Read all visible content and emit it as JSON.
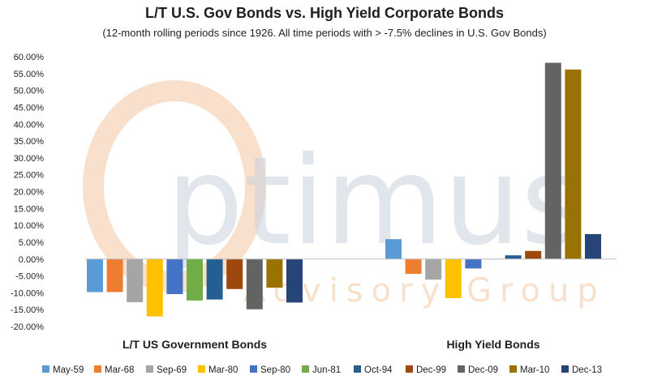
{
  "title": "L/T U.S. Gov Bonds vs. High Yield Corporate Bonds",
  "subtitle": "(12-month rolling periods since 1926.  All time periods with > -7.5% declines in U.S. Gov Bonds)",
  "watermark": {
    "brand": "Optimus",
    "tagline": "Advisory Group"
  },
  "colors": {
    "May-59": "#5b9bd5",
    "Mar-68": "#ed7d31",
    "Sep-69": "#a5a5a5",
    "Mar-80": "#ffc000",
    "Sep-80": "#4472c4",
    "Jun-81": "#70ad47",
    "Oct-94": "#255e91",
    "Dec-99": "#9e480e",
    "Dec-09": "#636363",
    "Mar-10": "#997300",
    "Dec-13": "#264478"
  },
  "chart_data": {
    "type": "bar",
    "title": "L/T U.S. Gov Bonds vs. High Yield Corporate Bonds",
    "subtitle": "(12-month rolling periods since 1926.  All time periods with > -7.5% declines in U.S. Gov Bonds)",
    "categories": [
      "L/T US Government Bonds",
      "High Yield Bonds"
    ],
    "ylim": [
      -20,
      60
    ],
    "ytick_step": 5,
    "y_tick_format": "percent_2dp",
    "grid": false,
    "legend": "bottom",
    "series": [
      {
        "name": "May-59",
        "values": [
          -9.8,
          5.9
        ]
      },
      {
        "name": "Mar-68",
        "values": [
          -9.8,
          -4.4
        ]
      },
      {
        "name": "Sep-69",
        "values": [
          -12.8,
          -6.1
        ]
      },
      {
        "name": "Mar-80",
        "values": [
          -17.0,
          -11.6
        ]
      },
      {
        "name": "Sep-80",
        "values": [
          -10.4,
          -2.8
        ]
      },
      {
        "name": "Jun-81",
        "values": [
          -12.3,
          0.0
        ]
      },
      {
        "name": "Oct-94",
        "values": [
          -12.0,
          1.1
        ]
      },
      {
        "name": "Dec-99",
        "values": [
          -8.9,
          2.4
        ]
      },
      {
        "name": "Dec-09",
        "values": [
          -14.9,
          58.2
        ]
      },
      {
        "name": "Mar-10",
        "values": [
          -8.5,
          56.2
        ]
      },
      {
        "name": "Dec-13",
        "values": [
          -12.9,
          7.4
        ]
      }
    ]
  }
}
